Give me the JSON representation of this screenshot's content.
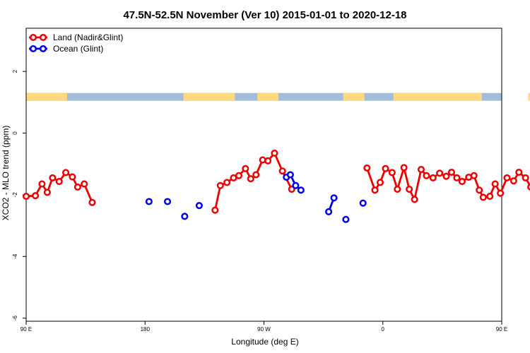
{
  "chart_data": {
    "type": "line",
    "title": "47.5N-52.5N November (Ver 10)   2015-01-01 to 2020-12-18",
    "xlabel": "Longitude (deg E)",
    "ylabel": "XCO2 - MLO trend (ppm)",
    "xlim": [
      90,
      450
    ],
    "ylim": [
      -6.1,
      3.4
    ],
    "x_ticks": [
      {
        "value": 90,
        "label": "90 E"
      },
      {
        "value": 180,
        "label": "180"
      },
      {
        "value": 270,
        "label": "90 W"
      },
      {
        "value": 360,
        "label": "0"
      },
      {
        "value": 450,
        "label": "90 E"
      },
      {
        "value": 540,
        "label": "180"
      }
    ],
    "y_ticks": [
      {
        "value": -6,
        "label": "-6"
      },
      {
        "value": -4,
        "label": "-4"
      },
      {
        "value": -2,
        "label": "-2"
      },
      {
        "value": 0,
        "label": "0"
      },
      {
        "value": 2,
        "label": "2"
      }
    ],
    "legend": {
      "position": "top-left"
    },
    "land_ocean_strip": {
      "y_range": [
        1.05,
        1.3
      ],
      "land_color": "#FFD97F",
      "ocean_color": "#A3BCD9"
    },
    "series": [
      {
        "name": "Land (Nadir&Glint)",
        "color": "#EE0000",
        "segments": [
          [
            [
              90,
              -2.05
            ],
            [
              97,
              -2.03
            ],
            [
              102,
              -1.65
            ],
            [
              106,
              -1.92
            ],
            [
              110,
              -1.45
            ],
            [
              115,
              -1.57
            ],
            [
              120,
              -1.28
            ],
            [
              125,
              -1.42
            ],
            [
              129,
              -1.75
            ],
            [
              134,
              -1.65
            ],
            [
              140,
              -2.25
            ]
          ],
          [
            [
              233,
              -2.5
            ],
            [
              237,
              -1.7
            ],
            [
              242,
              -1.6
            ],
            [
              247,
              -1.45
            ],
            [
              251,
              -1.38
            ],
            [
              256,
              -1.15
            ],
            [
              260,
              -1.48
            ],
            [
              264,
              -1.35
            ],
            [
              269,
              -0.87
            ],
            [
              273,
              -0.9
            ],
            [
              278,
              -0.65
            ],
            [
              284,
              -1.23
            ],
            [
              291,
              -1.82
            ]
          ],
          [
            [
              348,
              -1.13
            ],
            [
              354,
              -1.85
            ],
            [
              358,
              -1.6
            ],
            [
              362,
              -1.15
            ],
            [
              367,
              -1.28
            ],
            [
              371,
              -1.82
            ],
            [
              376,
              -1.12
            ],
            [
              380,
              -1.82
            ],
            [
              384,
              -2.15
            ],
            [
              389,
              -1.18
            ],
            [
              393,
              -1.38
            ],
            [
              398,
              -1.45
            ],
            [
              403,
              -1.3
            ],
            [
              408,
              -1.4
            ],
            [
              412,
              -1.27
            ],
            [
              416,
              -1.45
            ],
            [
              420,
              -1.57
            ],
            [
              425,
              -1.43
            ],
            [
              429,
              -1.38
            ],
            [
              433,
              -1.85
            ],
            [
              436,
              -2.08
            ],
            [
              441,
              -2.05
            ],
            [
              445,
              -1.65
            ],
            [
              449,
              -1.95
            ],
            [
              454,
              -1.45
            ],
            [
              459,
              -1.55
            ],
            [
              463,
              -1.27
            ],
            [
              468,
              -1.45
            ],
            [
              472,
              -1.75
            ],
            [
              477,
              -1.65
            ],
            [
              481,
              -2.25
            ]
          ]
        ]
      },
      {
        "name": "Ocean (Glint)",
        "color": "#0000EE",
        "segments": [
          [
            [
              183,
              -2.22
            ]
          ],
          [
            [
              197,
              -2.22
            ]
          ],
          [
            [
              210,
              -2.7
            ]
          ],
          [
            [
              221,
              -2.35
            ]
          ],
          [
            [
              287,
              -1.43
            ],
            [
              290,
              -1.35
            ],
            [
              294,
              -1.7
            ],
            [
              298,
              -1.85
            ]
          ],
          [
            [
              319,
              -2.55
            ],
            [
              323,
              -2.1
            ]
          ],
          [
            [
              332,
              -2.8
            ]
          ],
          [
            [
              345,
              -2.27
            ]
          ]
        ]
      }
    ]
  }
}
